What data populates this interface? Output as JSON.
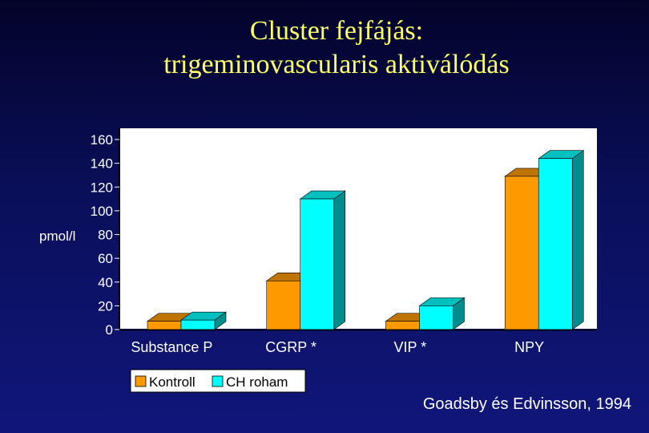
{
  "title_line1": "Cluster fejfájás:",
  "title_line2": "trigeminovascularis aktiválódás",
  "citation": "Goadsby és Edvinsson, 1994",
  "chart_data": {
    "type": "bar",
    "categories": [
      "Substance P",
      "CGRP *",
      "VIP *",
      "NPY"
    ],
    "series": [
      {
        "name": "Kontroll",
        "values": [
          7,
          41,
          7,
          129
        ],
        "color": "#ff9900"
      },
      {
        "name": "CH roham",
        "values": [
          8,
          110,
          20,
          144
        ],
        "color": "#00ffff"
      }
    ],
    "ylabel": "pmol/l",
    "ylim": [
      0,
      160
    ],
    "yticks": [
      0,
      20,
      40,
      60,
      80,
      100,
      120,
      140,
      160
    ],
    "grid": false,
    "legend": "bottom"
  }
}
